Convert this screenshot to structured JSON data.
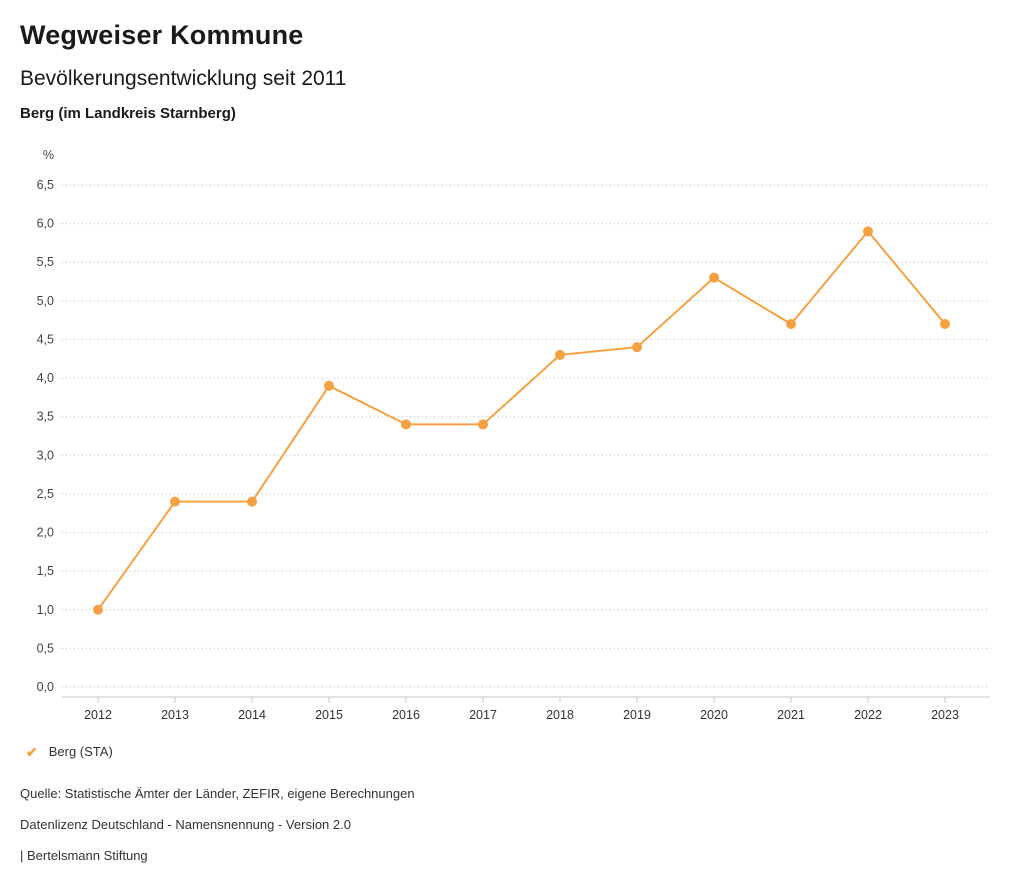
{
  "header": {
    "title": "Wegweiser Kommune",
    "subtitle": "Bevölkerungsentwicklung seit 2011",
    "location": "Berg (im Landkreis Starnberg)"
  },
  "chart_data": {
    "type": "line",
    "x": [
      "2012",
      "2013",
      "2014",
      "2015",
      "2016",
      "2017",
      "2018",
      "2019",
      "2020",
      "2021",
      "2022",
      "2023"
    ],
    "series": [
      {
        "name": "Berg (STA)",
        "values": [
          1.0,
          2.4,
          2.4,
          3.9,
          3.4,
          3.4,
          4.3,
          4.4,
          5.3,
          4.7,
          5.9,
          4.7
        ],
        "color": "#f5a142"
      }
    ],
    "title": "Bevölkerungsentwicklung seit 2011",
    "xlabel": "",
    "ylabel": "%",
    "ylim": [
      0,
      6.5
    ],
    "ytick_step": 0.5,
    "grid": true,
    "gridline_color": "#bbbbbb",
    "axis_line_color": "#c8c8c8",
    "legend_position": "bottom",
    "decimal_separator": ","
  },
  "legend": {
    "label": "Berg (STA)",
    "check_color": "#f5a142",
    "check_icon": "✔"
  },
  "footer": {
    "source": "Quelle: Statistische Ämter der Länder, ZEFIR, eigene Berechnungen",
    "license": "Datenlizenz Deutschland - Namensnennung - Version 2.0",
    "attribution": "| Bertelsmann Stiftung"
  }
}
